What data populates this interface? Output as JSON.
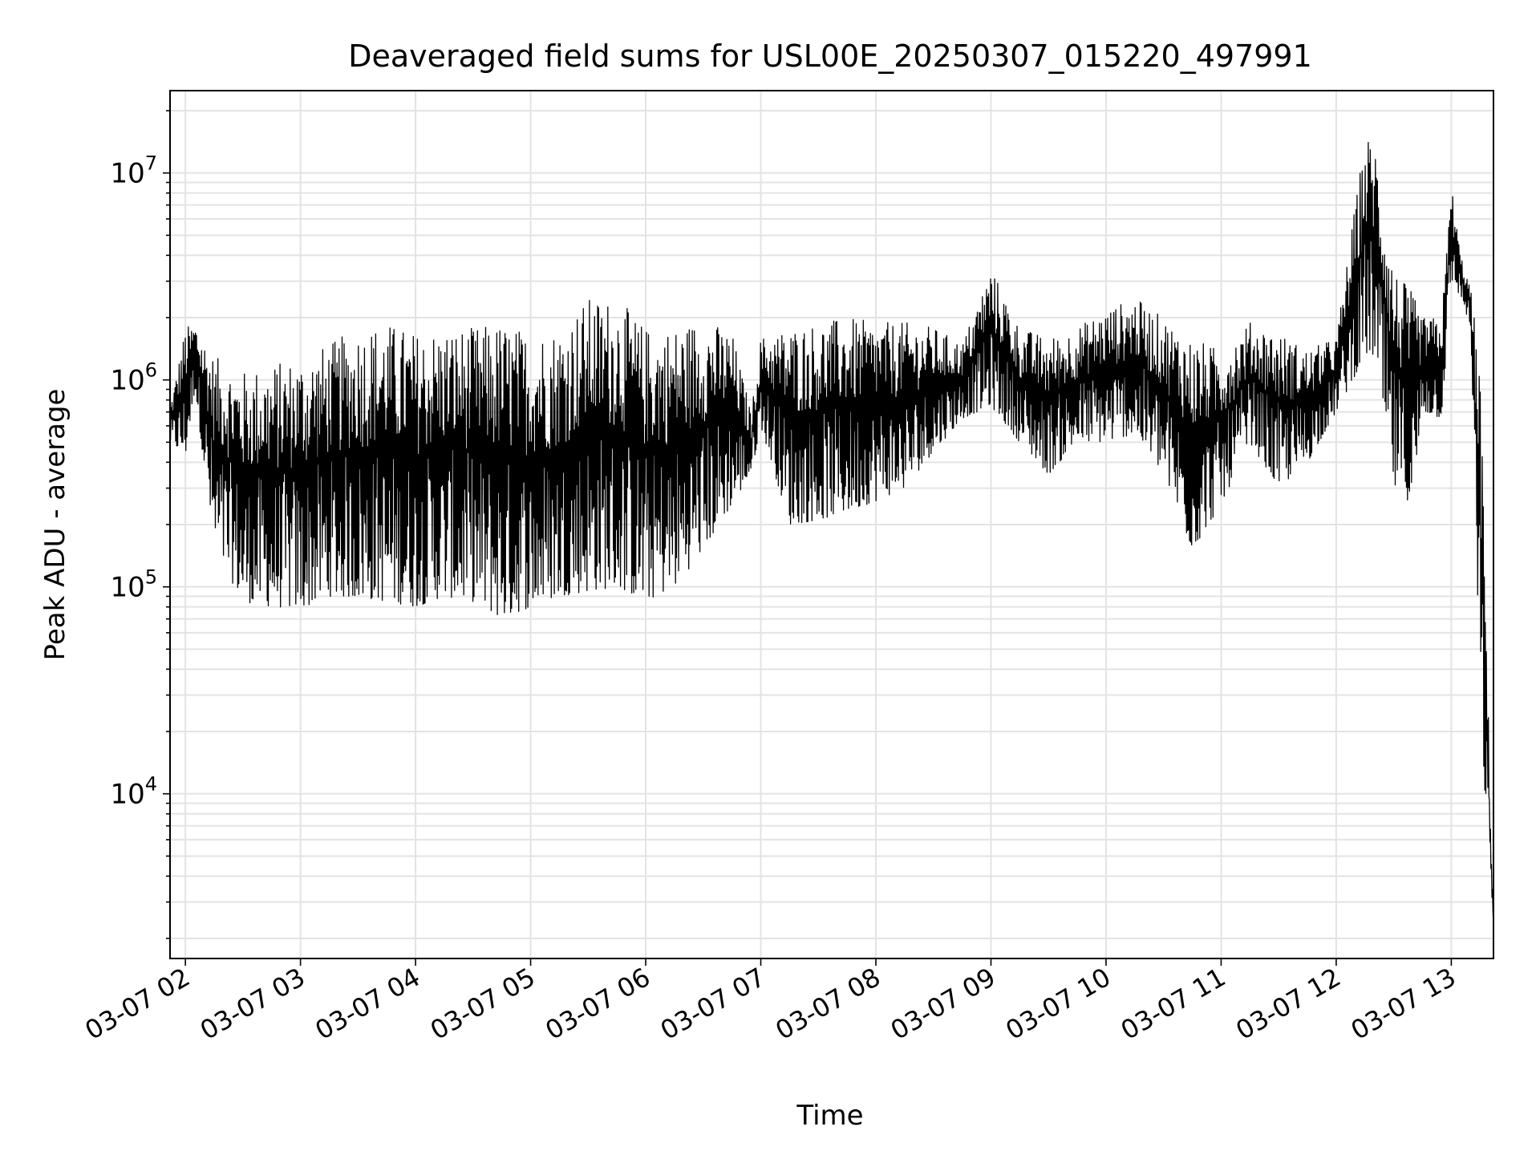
{
  "chart_data": {
    "type": "line",
    "title": "Deaveraged field sums for USL00E_20250307_015220_497991",
    "xlabel": "Time",
    "ylabel": "Peak ADU - average",
    "yscale": "log",
    "grid": true,
    "ylim": [
      1600,
      25000000
    ],
    "xlim_hours": [
      "03-07 01:52",
      "03-07 13:22"
    ],
    "x_ticks": [
      "03-07 02",
      "03-07 03",
      "03-07 04",
      "03-07 05",
      "03-07 06",
      "03-07 07",
      "03-07 08",
      "03-07 09",
      "03-07 10",
      "03-07 11",
      "03-07 12",
      "03-07 13"
    ],
    "y_ticks": [
      {
        "value": 10000,
        "base": "10",
        "exp": "4"
      },
      {
        "value": 100000,
        "base": "10",
        "exp": "5"
      },
      {
        "value": 1000000,
        "base": "10",
        "exp": "6"
      },
      {
        "value": 10000000,
        "base": "10",
        "exp": "7"
      }
    ],
    "line_color": "#000000",
    "series": [
      {
        "envelope": {
          "time": [
            "01:52",
            "02:00",
            "02:05",
            "02:15",
            "02:30",
            "02:45",
            "03:00",
            "03:15",
            "03:30",
            "03:45",
            "04:00",
            "04:15",
            "04:30",
            "04:45",
            "05:00",
            "05:15",
            "05:30",
            "05:45",
            "06:00",
            "06:15",
            "06:30",
            "06:45",
            "06:55",
            "07:00",
            "07:15",
            "07:30",
            "07:45",
            "08:00",
            "08:15",
            "08:30",
            "08:45",
            "09:00",
            "09:15",
            "09:30",
            "09:45",
            "10:00",
            "10:15",
            "10:30",
            "10:45",
            "11:00",
            "11:15",
            "11:30",
            "11:45",
            "12:00",
            "12:15",
            "12:20",
            "12:30",
            "12:40",
            "12:45",
            "12:55",
            "13:00",
            "13:05",
            "13:10",
            "13:15",
            "13:18",
            "13:20",
            "13:22"
          ],
          "low": [
            500000,
            420000,
            900000,
            150000,
            85000,
            80000,
            78000,
            90000,
            88000,
            85000,
            80000,
            90000,
            85000,
            70000,
            80000,
            90000,
            95000,
            100000,
            85000,
            100000,
            150000,
            250000,
            350000,
            600000,
            200000,
            210000,
            230000,
            260000,
            300000,
            450000,
            650000,
            750000,
            500000,
            350000,
            500000,
            500000,
            550000,
            350000,
            150000,
            250000,
            500000,
            300000,
            400000,
            700000,
            1300000,
            1300000,
            300000,
            250000,
            700000,
            650000,
            3000000,
            2500000,
            1800000,
            30000,
            8000,
            5000,
            2300
          ],
          "high": [
            750000,
            1800000,
            1900000,
            1300000,
            1100000,
            1200000,
            1300000,
            1500000,
            1800000,
            1900000,
            1700000,
            1800000,
            1800000,
            1900000,
            1700000,
            1800000,
            2500000,
            2500000,
            1800000,
            1800000,
            2000000,
            1700000,
            700000,
            1600000,
            1800000,
            1900000,
            2000000,
            1900000,
            1900000,
            1800000,
            1500000,
            3500000,
            1800000,
            1600000,
            1800000,
            2200000,
            2500000,
            2000000,
            1600000,
            1400000,
            1900000,
            1700000,
            1400000,
            1600000,
            15000000,
            15000000,
            3500000,
            2600000,
            2000000,
            2000000,
            9000000,
            4000000,
            2800000,
            1200000,
            100000,
            12000,
            2300
          ]
        }
      }
    ]
  }
}
